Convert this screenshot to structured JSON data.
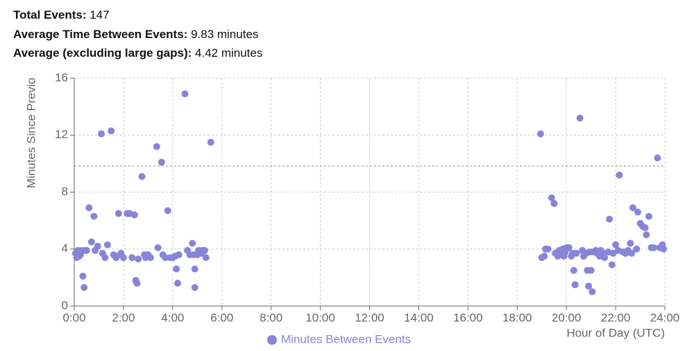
{
  "stats": [
    {
      "label": "Total Events:",
      "value": "147"
    },
    {
      "label": "Average Time Between Events:",
      "value": "9.83 minutes"
    },
    {
      "label": "Average (excluding large gaps):",
      "value": "4.42 minutes"
    }
  ],
  "chart_data": {
    "type": "scatter",
    "y_label": "Minutes Since Previo",
    "x_label": "Hour of Day (UTC)",
    "xlim": [
      0,
      24
    ],
    "xticks": [
      {
        "value": 0,
        "label": "0:00"
      },
      {
        "value": 2,
        "label": "2:00"
      },
      {
        "value": 4,
        "label": "4:00"
      },
      {
        "value": 6,
        "label": "6:00"
      },
      {
        "value": 8,
        "label": "8:00"
      },
      {
        "value": 10,
        "label": "10:00"
      },
      {
        "value": 12,
        "label": "12:00"
      },
      {
        "value": 14,
        "label": "14:00"
      },
      {
        "value": 16,
        "label": "16:00"
      },
      {
        "value": 18,
        "label": "18:00"
      },
      {
        "value": 20,
        "label": "20:00"
      },
      {
        "value": 22,
        "label": "22:00"
      },
      {
        "value": 24,
        "label": "24:00"
      }
    ],
    "ylim": [
      0,
      16
    ],
    "yticks": [
      0,
      4,
      8,
      12,
      16
    ],
    "grid": true,
    "reference_line": 9.83,
    "series": [
      {
        "name": "Minutes Between Events",
        "color": "#8884d8",
        "x": [
          0.05,
          0.1,
          0.15,
          0.2,
          0.25,
          0.3,
          0.35,
          0.4,
          0.45,
          0.5,
          0.6,
          0.7,
          0.8,
          0.85,
          0.95,
          1.1,
          1.15,
          1.25,
          1.35,
          1.5,
          1.6,
          1.7,
          1.8,
          1.85,
          1.9,
          2.0,
          2.15,
          2.25,
          2.35,
          2.45,
          2.5,
          2.55,
          2.6,
          2.75,
          2.85,
          2.9,
          3.0,
          3.1,
          3.35,
          3.4,
          3.55,
          3.6,
          3.7,
          3.8,
          3.9,
          4.0,
          4.1,
          4.15,
          4.2,
          4.25,
          4.5,
          4.6,
          4.7,
          4.8,
          4.85,
          4.9,
          4.9,
          5.0,
          5.05,
          5.15,
          5.2,
          5.3,
          5.35,
          5.55,
          18.95,
          19.0,
          19.1,
          19.15,
          19.25,
          19.4,
          19.5,
          19.55,
          19.65,
          19.7,
          19.8,
          19.85,
          19.9,
          19.95,
          20.0,
          20.1,
          20.2,
          20.25,
          20.3,
          20.35,
          20.4,
          20.55,
          20.65,
          20.7,
          20.8,
          20.85,
          20.9,
          20.95,
          21.0,
          21.05,
          21.1,
          21.2,
          21.25,
          21.35,
          21.4,
          21.5,
          21.55,
          21.7,
          21.75,
          21.85,
          21.9,
          22.0,
          22.1,
          22.15,
          22.3,
          22.4,
          22.5,
          22.6,
          22.65,
          22.7,
          22.85,
          22.9,
          23.0,
          23.1,
          23.2,
          23.25,
          23.35,
          23.45,
          23.55,
          23.7,
          23.8,
          23.9,
          23.95
        ],
        "values": [
          3.7,
          3.4,
          3.9,
          3.5,
          3.6,
          3.9,
          2.1,
          1.3,
          3.9,
          3.9,
          6.9,
          4.5,
          6.3,
          3.9,
          4.2,
          12.1,
          3.7,
          3.4,
          4.3,
          12.3,
          3.6,
          3.4,
          6.5,
          3.6,
          3.7,
          3.4,
          6.5,
          6.5,
          3.4,
          6.4,
          1.8,
          1.6,
          3.3,
          9.1,
          3.6,
          3.4,
          3.6,
          3.4,
          11.2,
          4.1,
          10.1,
          3.6,
          3.4,
          6.7,
          3.4,
          3.4,
          3.5,
          2.6,
          1.6,
          3.6,
          14.9,
          3.9,
          3.6,
          4.4,
          3.6,
          2.6,
          1.3,
          3.6,
          3.9,
          3.7,
          3.9,
          3.9,
          3.4,
          11.5,
          12.1,
          3.4,
          3.5,
          4.0,
          4.0,
          7.6,
          7.2,
          3.7,
          3.5,
          3.9,
          3.6,
          4.0,
          3.5,
          3.8,
          4.1,
          4.1,
          3.5,
          3.7,
          2.5,
          1.5,
          3.7,
          13.2,
          3.9,
          3.5,
          3.7,
          2.5,
          1.4,
          3.8,
          2.5,
          1.0,
          3.8,
          3.9,
          3.7,
          3.5,
          3.9,
          3.7,
          3.4,
          3.8,
          6.1,
          2.9,
          3.7,
          4.3,
          3.9,
          9.2,
          3.8,
          3.7,
          3.9,
          4.4,
          3.7,
          6.9,
          4.0,
          6.6,
          5.8,
          5.6,
          5.5,
          5.0,
          6.3,
          4.1,
          4.1,
          10.4,
          4.1,
          4.3,
          4.0
        ]
      }
    ]
  }
}
